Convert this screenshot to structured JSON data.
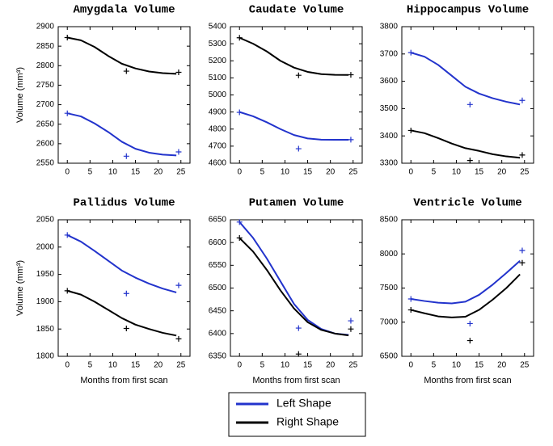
{
  "chart_data": [
    {
      "type": "line",
      "title": "Amygdala Volume",
      "ylabel": "Volume (mm³)",
      "x": [
        0,
        3,
        6,
        9,
        12,
        15,
        18,
        21,
        24
      ],
      "xlim": [
        -2,
        27
      ],
      "xticks": [
        0,
        5,
        10,
        15,
        20,
        25
      ],
      "ylim": [
        2550,
        2900
      ],
      "yticks": [
        2550,
        2600,
        2650,
        2700,
        2750,
        2800,
        2850,
        2900
      ],
      "series": [
        {
          "name": "Left Shape",
          "color": "#2233cc",
          "values": [
            2678,
            2670,
            2652,
            2630,
            2605,
            2587,
            2577,
            2572,
            2570
          ]
        },
        {
          "name": "Right Shape",
          "color": "#000000",
          "values": [
            2872,
            2865,
            2848,
            2825,
            2805,
            2793,
            2785,
            2781,
            2779
          ]
        },
        {
          "marker": "plus",
          "color": "#2233cc",
          "x": [
            0,
            13,
            24.5
          ],
          "values": [
            2678,
            2568,
            2579
          ]
        },
        {
          "marker": "plus",
          "color": "#000000",
          "x": [
            0,
            13,
            24.5
          ],
          "values": [
            2872,
            2786,
            2783
          ]
        }
      ]
    },
    {
      "type": "line",
      "title": "Caudate Volume",
      "x": [
        0,
        3,
        6,
        9,
        12,
        15,
        18,
        21,
        24
      ],
      "xlim": [
        -2,
        27
      ],
      "xticks": [
        0,
        5,
        10,
        15,
        20,
        25
      ],
      "ylim": [
        4600,
        5400
      ],
      "yticks": [
        4600,
        4700,
        4800,
        4900,
        5000,
        5100,
        5200,
        5300,
        5400
      ],
      "series": [
        {
          "color": "#2233cc",
          "values": [
            4900,
            4875,
            4840,
            4800,
            4765,
            4745,
            4738,
            4737,
            4737
          ]
        },
        {
          "color": "#000000",
          "values": [
            5335,
            5300,
            5255,
            5200,
            5160,
            5135,
            5122,
            5118,
            5117
          ]
        },
        {
          "marker": "plus",
          "color": "#2233cc",
          "x": [
            0,
            13,
            24.5
          ],
          "values": [
            4898,
            4685,
            4738
          ]
        },
        {
          "marker": "plus",
          "color": "#000000",
          "x": [
            0,
            13,
            24.5
          ],
          "values": [
            5335,
            5115,
            5118
          ]
        }
      ]
    },
    {
      "type": "line",
      "title": "Hippocampus Volume",
      "x": [
        0,
        3,
        6,
        9,
        12,
        15,
        18,
        21,
        24
      ],
      "xlim": [
        -2,
        27
      ],
      "xticks": [
        0,
        5,
        10,
        15,
        20,
        25
      ],
      "ylim": [
        3300,
        3800
      ],
      "yticks": [
        3300,
        3400,
        3500,
        3600,
        3700,
        3800
      ],
      "series": [
        {
          "color": "#2233cc",
          "values": [
            3705,
            3690,
            3660,
            3620,
            3580,
            3555,
            3538,
            3525,
            3515
          ]
        },
        {
          "color": "#000000",
          "values": [
            3420,
            3410,
            3392,
            3372,
            3355,
            3345,
            3333,
            3325,
            3320
          ]
        },
        {
          "marker": "plus",
          "color": "#2233cc",
          "x": [
            0,
            13,
            24.5
          ],
          "values": [
            3705,
            3515,
            3530
          ]
        },
        {
          "marker": "plus",
          "color": "#000000",
          "x": [
            0,
            13,
            24.5
          ],
          "values": [
            3420,
            3310,
            3330
          ]
        }
      ]
    },
    {
      "type": "line",
      "title": "Pallidus Volume",
      "ylabel": "Volume (mm³)",
      "xlabel": "Months from first scan",
      "x": [
        0,
        3,
        6,
        9,
        12,
        15,
        18,
        21,
        24
      ],
      "xlim": [
        -2,
        27
      ],
      "xticks": [
        0,
        5,
        10,
        15,
        20,
        25
      ],
      "ylim": [
        1800,
        2050
      ],
      "yticks": [
        1800,
        1850,
        1900,
        1950,
        2000,
        2050
      ],
      "series": [
        {
          "color": "#2233cc",
          "values": [
            2022,
            2010,
            1993,
            1975,
            1957,
            1944,
            1933,
            1924,
            1917
          ]
        },
        {
          "color": "#000000",
          "values": [
            1920,
            1913,
            1900,
            1885,
            1870,
            1858,
            1850,
            1843,
            1838
          ]
        },
        {
          "marker": "plus",
          "color": "#2233cc",
          "x": [
            0,
            13,
            24.5
          ],
          "values": [
            2022,
            1915,
            1930
          ]
        },
        {
          "marker": "plus",
          "color": "#000000",
          "x": [
            0,
            13,
            24.5
          ],
          "values": [
            1920,
            1851,
            1832
          ]
        }
      ]
    },
    {
      "type": "line",
      "title": "Putamen Volume",
      "xlabel": "Months from first scan",
      "x": [
        0,
        3,
        6,
        9,
        12,
        15,
        18,
        21,
        24
      ],
      "xlim": [
        -2,
        27
      ],
      "xticks": [
        0,
        5,
        10,
        15,
        20,
        25
      ],
      "ylim": [
        6350,
        6650
      ],
      "yticks": [
        6350,
        6400,
        6450,
        6500,
        6550,
        6600,
        6650
      ],
      "series": [
        {
          "color": "#2233cc",
          "values": [
            6645,
            6610,
            6565,
            6515,
            6465,
            6430,
            6410,
            6400,
            6397
          ]
        },
        {
          "color": "#000000",
          "values": [
            6610,
            6580,
            6540,
            6495,
            6455,
            6425,
            6408,
            6400,
            6396
          ]
        },
        {
          "marker": "plus",
          "color": "#2233cc",
          "x": [
            0,
            13,
            24.5
          ],
          "values": [
            6645,
            6412,
            6428
          ]
        },
        {
          "marker": "plus",
          "color": "#000000",
          "x": [
            0,
            13,
            24.5
          ],
          "values": [
            6610,
            6355,
            6410
          ]
        }
      ]
    },
    {
      "type": "line",
      "title": "Ventricle Volume",
      "xlabel": "Months from first scan",
      "x": [
        0,
        3,
        6,
        9,
        12,
        15,
        18,
        21,
        24
      ],
      "xlim": [
        -2,
        27
      ],
      "xticks": [
        0,
        5,
        10,
        15,
        20,
        25
      ],
      "ylim": [
        6500,
        8500
      ],
      "yticks": [
        6500,
        7000,
        7500,
        8000,
        8500
      ],
      "series": [
        {
          "color": "#2233cc",
          "values": [
            7340,
            7310,
            7285,
            7275,
            7300,
            7400,
            7550,
            7720,
            7900
          ]
        },
        {
          "color": "#000000",
          "values": [
            7180,
            7130,
            7085,
            7070,
            7080,
            7180,
            7330,
            7500,
            7700
          ]
        },
        {
          "marker": "plus",
          "color": "#2233cc",
          "x": [
            0,
            13,
            24.5
          ],
          "values": [
            7340,
            6980,
            8050
          ]
        },
        {
          "marker": "plus",
          "color": "#000000",
          "x": [
            0,
            13,
            24.5
          ],
          "values": [
            7180,
            6730,
            7870
          ]
        }
      ]
    }
  ]
}
